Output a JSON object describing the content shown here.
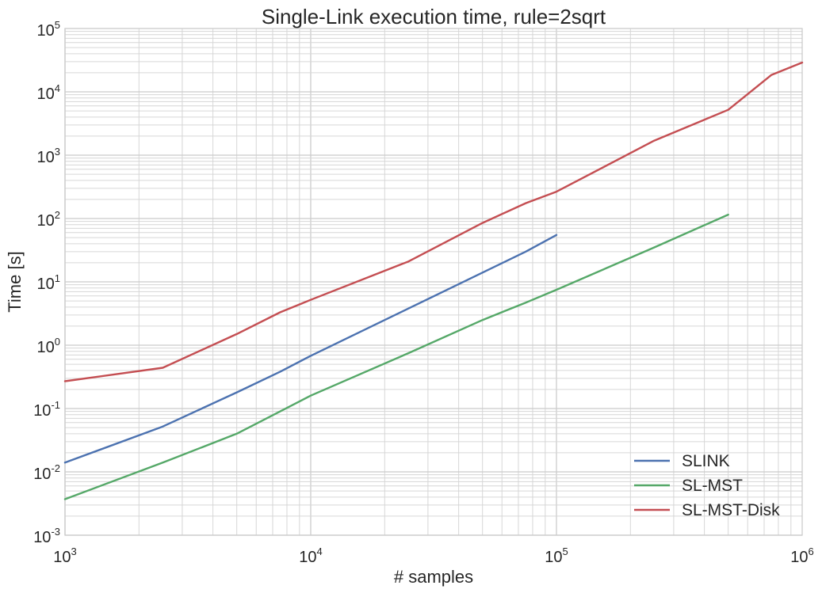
{
  "chart_data": {
    "type": "line",
    "title": "Single-Link execution time, rule=2sqrt",
    "xlabel": "# samples",
    "ylabel": "Time [s]",
    "xscale": "log",
    "yscale": "log",
    "xlim": [
      1000,
      1000000
    ],
    "ylim": [
      0.001,
      100000
    ],
    "grid": true,
    "legend_position": "bottom-right",
    "x_tick_labels": [
      {
        "base": "10",
        "exp": "3"
      },
      {
        "base": "10",
        "exp": "4"
      },
      {
        "base": "10",
        "exp": "5"
      },
      {
        "base": "10",
        "exp": "6"
      }
    ],
    "y_tick_labels": [
      {
        "base": "10",
        "exp": "-3"
      },
      {
        "base": "10",
        "exp": "-2"
      },
      {
        "base": "10",
        "exp": "-1"
      },
      {
        "base": "10",
        "exp": "0"
      },
      {
        "base": "10",
        "exp": "1"
      },
      {
        "base": "10",
        "exp": "2"
      },
      {
        "base": "10",
        "exp": "3"
      },
      {
        "base": "10",
        "exp": "4"
      },
      {
        "base": "10",
        "exp": "5"
      }
    ],
    "series": [
      {
        "name": "SLINK",
        "color": "#4c72b0",
        "x": [
          1000,
          2500,
          5000,
          7500,
          10000,
          25000,
          50000,
          75000,
          100000
        ],
        "y": [
          0.014,
          0.052,
          0.18,
          0.38,
          0.68,
          3.8,
          14,
          30,
          55
        ]
      },
      {
        "name": "SL-MST",
        "color": "#55a868",
        "x": [
          1000,
          2500,
          5000,
          7500,
          10000,
          25000,
          50000,
          75000,
          100000,
          250000,
          500000
        ],
        "y": [
          0.0037,
          0.014,
          0.04,
          0.09,
          0.16,
          0.75,
          2.5,
          4.7,
          7.5,
          35,
          115
        ]
      },
      {
        "name": "SL-MST-Disk",
        "color": "#c44e52",
        "x": [
          1000,
          2500,
          5000,
          7500,
          10000,
          25000,
          50000,
          75000,
          100000,
          250000,
          500000,
          750000,
          1000000
        ],
        "y": [
          0.27,
          0.44,
          1.5,
          3.3,
          5.2,
          21,
          85,
          175,
          265,
          1700,
          5200,
          18500,
          29000
        ]
      }
    ]
  }
}
